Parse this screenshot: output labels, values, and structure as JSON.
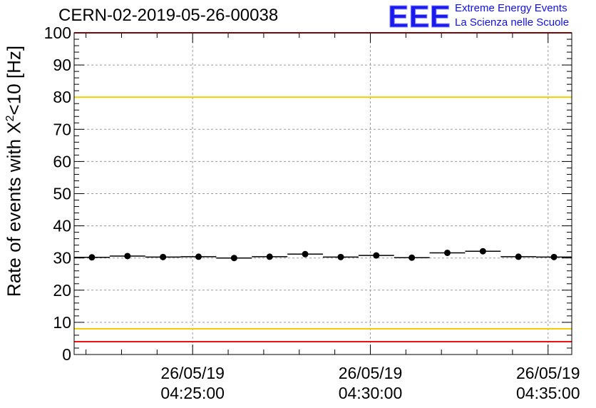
{
  "header": {
    "run_id": "CERN-02-2019-05-26-00038",
    "logo_letters": "EEE",
    "logo_line1": "Extreme Energy Events",
    "logo_line2": "La Scienza nelle Scuole"
  },
  "chart_data": {
    "type": "scatter",
    "title": "CERN-02-2019-05-26-00038",
    "ylabel": "Rate of events with X^2<10 [Hz]",
    "ylabel_parts": {
      "pre": "Rate of events with X",
      "sup": "2",
      "post": "<10 [Hz]"
    },
    "ylim": [
      0,
      100
    ],
    "yticks": [
      0,
      10,
      20,
      30,
      40,
      50,
      60,
      70,
      80,
      90,
      100
    ],
    "xlim": [
      "2019-05-26 04:21:40",
      "2019-05-26 04:35:40"
    ],
    "xticks": [
      {
        "time": "2019-05-26 04:25:00",
        "date_label": "26/05/19",
        "time_label": "04:25:00"
      },
      {
        "time": "2019-05-26 04:30:00",
        "date_label": "26/05/19",
        "time_label": "04:30:00"
      },
      {
        "time": "2019-05-26 04:35:00",
        "date_label": "26/05/19",
        "time_label": "04:35:00"
      }
    ],
    "grid": true,
    "bin_width_minutes": 1,
    "points": [
      {
        "time": "2019-05-26 04:22:10",
        "rate": 30.2
      },
      {
        "time": "2019-05-26 04:23:10",
        "rate": 30.6
      },
      {
        "time": "2019-05-26 04:24:10",
        "rate": 30.3
      },
      {
        "time": "2019-05-26 04:25:10",
        "rate": 30.4
      },
      {
        "time": "2019-05-26 04:26:10",
        "rate": 30.0
      },
      {
        "time": "2019-05-26 04:27:10",
        "rate": 30.4
      },
      {
        "time": "2019-05-26 04:28:10",
        "rate": 31.2
      },
      {
        "time": "2019-05-26 04:29:10",
        "rate": 30.3
      },
      {
        "time": "2019-05-26 04:30:10",
        "rate": 30.8
      },
      {
        "time": "2019-05-26 04:31:10",
        "rate": 30.1
      },
      {
        "time": "2019-05-26 04:32:10",
        "rate": 31.6
      },
      {
        "time": "2019-05-26 04:33:10",
        "rate": 32.1
      },
      {
        "time": "2019-05-26 04:34:10",
        "rate": 30.4
      },
      {
        "time": "2019-05-26 04:35:10",
        "rate": 30.3
      }
    ],
    "reference_lines": [
      {
        "value": 100,
        "color": "#ee1111"
      },
      {
        "value": 80,
        "color": "#eecc00"
      },
      {
        "value": 8,
        "color": "#eecc00"
      },
      {
        "value": 4,
        "color": "#ee1111"
      }
    ],
    "colors": {
      "marker": "#000000",
      "grid": "#9a9a9a",
      "axis": "#000000"
    }
  }
}
